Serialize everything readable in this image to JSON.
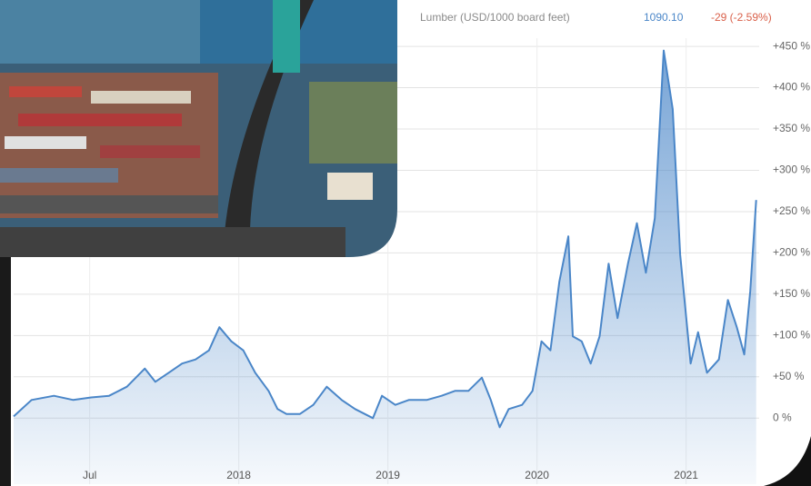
{
  "chart_data": {
    "type": "line",
    "title": "Lumber (USD/1000 board feet)",
    "last_value": "1090.10",
    "change": "-29 (-2.59%)",
    "x": [
      2016.49,
      2016.61,
      2016.76,
      2016.89,
      2017.01,
      2017.13,
      2017.25,
      2017.37,
      2017.44,
      2017.53,
      2017.62,
      2017.71,
      2017.8,
      2017.87,
      2017.95,
      2018.03,
      2018.11,
      2018.2,
      2018.26,
      2018.32,
      2018.41,
      2018.5,
      2018.59,
      2018.69,
      2018.78,
      2018.9,
      2018.96,
      2019.05,
      2019.14,
      2019.26,
      2019.36,
      2019.45,
      2019.54,
      2019.63,
      2019.69,
      2019.75,
      2019.81,
      2019.9,
      2019.97,
      2020.03,
      2020.09,
      2020.15,
      2020.21,
      2020.24,
      2020.3,
      2020.36,
      2020.42,
      2020.48,
      2020.54,
      2020.61,
      2020.67,
      2020.73,
      2020.79,
      2020.85,
      2020.91,
      2020.96,
      2021.03,
      2021.08,
      2021.14,
      2021.22,
      2021.28,
      2021.34,
      2021.39,
      2021.43,
      2021.47
    ],
    "series": [
      {
        "color": "#4a86c8",
        "values": [
          2,
          22,
          27,
          22,
          25,
          27,
          38,
          60,
          44,
          55,
          66,
          71,
          82,
          110,
          93,
          82,
          55,
          33,
          11,
          5,
          5,
          16,
          38,
          22,
          11,
          0,
          27,
          16,
          22,
          22,
          27,
          33,
          33,
          49,
          22,
          -11,
          11,
          16,
          33,
          93,
          82,
          165,
          220,
          99,
          93,
          66,
          99,
          187,
          121,
          187,
          236,
          176,
          242,
          445,
          374,
          198,
          66,
          104,
          55,
          71,
          143,
          110,
          77,
          154,
          264
        ]
      }
    ],
    "xlim": [
      2016.49,
      2021.49
    ],
    "xticks": [
      {
        "value": 2017,
        "label": "Jul"
      },
      2018,
      2019,
      2020,
      2021
    ],
    "ylim": [
      -80,
      460
    ],
    "yticks": [
      {
        "value": 0,
        "label": "0 %"
      },
      {
        "value": 50,
        "label": "+50 %"
      },
      {
        "value": 100,
        "label": "+100 %"
      },
      {
        "value": 150,
        "label": "+150 %"
      },
      {
        "value": 200,
        "label": "+200 %"
      },
      {
        "value": 250,
        "label": "+250 %"
      },
      {
        "value": 300,
        "label": "+300 %"
      },
      {
        "value": 350,
        "label": "+350 %"
      },
      {
        "value": 400,
        "label": "+400 %"
      },
      {
        "value": 450,
        "label": "+450 %"
      }
    ],
    "grid": true
  }
}
